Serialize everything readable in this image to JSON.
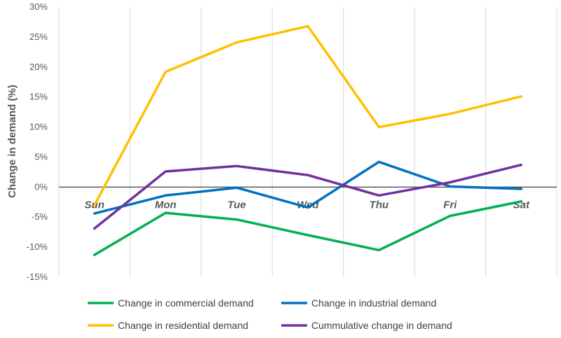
{
  "chart_data": {
    "type": "line",
    "title": "",
    "xlabel": "",
    "ylabel": "Change in demand (%)",
    "categories": [
      "Sun",
      "Mon",
      "Tue",
      "Wed",
      "Thu",
      "Fri",
      "Sat"
    ],
    "ylim": [
      -15,
      30
    ],
    "yticks": [
      -15,
      -10,
      -5,
      0,
      5,
      10,
      15,
      20,
      25,
      30
    ],
    "ytick_labels": [
      "-15%",
      "-10%",
      "-5%",
      "0%",
      "5%",
      "10%",
      "15%",
      "20%",
      "25%",
      "30%"
    ],
    "grid": "vertical",
    "legend_position": "bottom",
    "series": [
      {
        "name": "Change in commercial demand",
        "color": "#00b050",
        "values": [
          -11.3,
          -4.3,
          -5.4,
          -8.0,
          -10.5,
          -4.8,
          -2.4
        ]
      },
      {
        "name": "Change in industrial demand",
        "color": "#0070c0",
        "values": [
          -4.4,
          -1.4,
          -0.1,
          -3.4,
          4.2,
          0.1,
          -0.3
        ]
      },
      {
        "name": "Change in residential demand",
        "color": "#ffc000",
        "values": [
          -3.0,
          19.2,
          24.1,
          26.8,
          10.0,
          12.2,
          15.1
        ]
      },
      {
        "name": "Cummulative change in demand",
        "color": "#7030a0",
        "values": [
          -6.9,
          2.6,
          3.5,
          2.0,
          -1.4,
          0.8,
          3.7
        ]
      }
    ]
  }
}
